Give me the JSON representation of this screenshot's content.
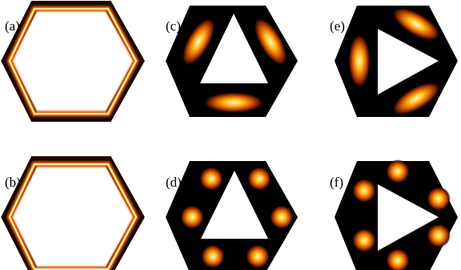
{
  "figure": {
    "panels": [
      {
        "id": "a",
        "label": "(a)",
        "shape": "hexagonal-ring",
        "hot_spots": 0
      },
      {
        "id": "b",
        "label": "(b)",
        "shape": "hexagonal-ring",
        "hot_spots": 0
      },
      {
        "id": "c",
        "label": "(c)",
        "shape": "hexagon-with-triangle-hole-up",
        "hot_spots": 3
      },
      {
        "id": "d",
        "label": "(d)",
        "shape": "hexagon-with-triangle-hole-up",
        "hot_spots": 6
      },
      {
        "id": "e",
        "label": "(e)",
        "shape": "hexagon-with-triangle-hole-right",
        "hot_spots": 3
      },
      {
        "id": "f",
        "label": "(f)",
        "shape": "hexagon-with-triangle-hole-right",
        "hot_spots": 6
      }
    ],
    "colors": {
      "background": "#ffffff",
      "cold": "#000000",
      "warm": "#5a1400",
      "hot": "#ff8a00",
      "peak": "#fff6c8"
    }
  }
}
